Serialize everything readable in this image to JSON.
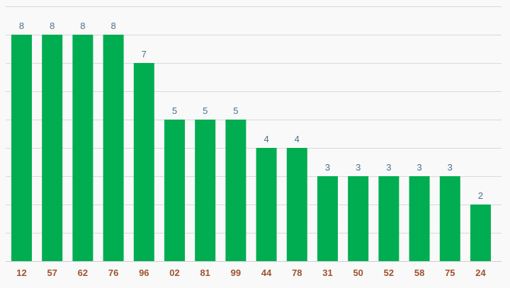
{
  "chart_data": {
    "type": "bar",
    "categories": [
      "12",
      "57",
      "62",
      "76",
      "96",
      "02",
      "81",
      "99",
      "44",
      "78",
      "31",
      "50",
      "52",
      "58",
      "75",
      "24"
    ],
    "values": [
      8,
      8,
      8,
      8,
      7,
      5,
      5,
      5,
      4,
      4,
      3,
      3,
      3,
      3,
      3,
      2
    ],
    "title": "",
    "xlabel": "",
    "ylabel": "",
    "ylim": [
      0,
      9
    ],
    "grid": true,
    "data_labels": true,
    "legend": "none",
    "colors": {
      "bar": "#00ad50",
      "value_label": "#4f6f8a",
      "tick_label": "#a0522d",
      "grid": "#d9d9d9",
      "background": "#f9f9f9"
    }
  }
}
